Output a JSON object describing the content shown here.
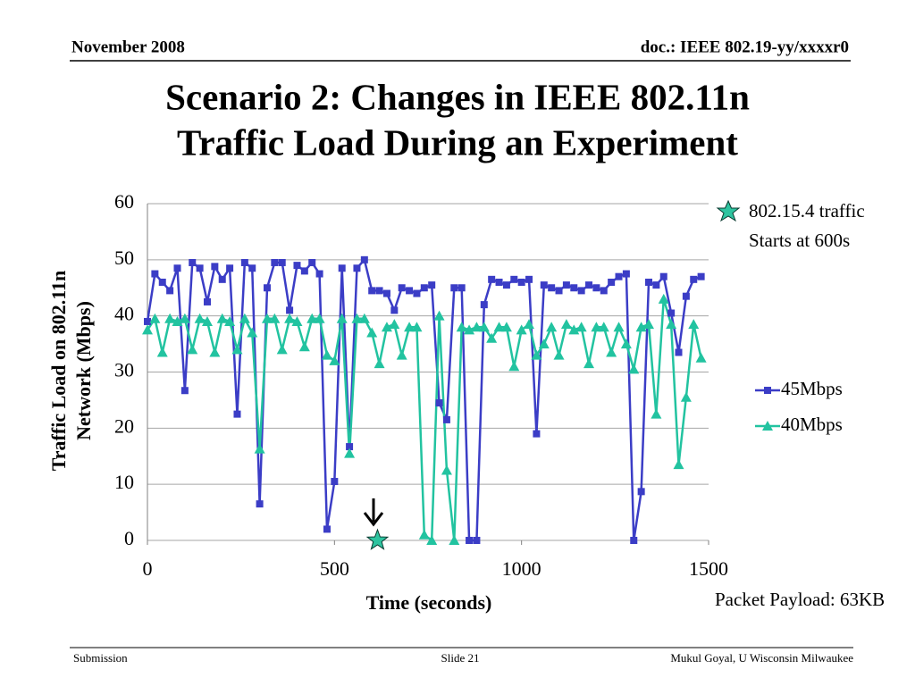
{
  "header": {
    "date": "November 2008",
    "doc": "doc.: IEEE 802.19-yy/xxxxr0"
  },
  "slide_title": [
    "Scenario 2: Changes in IEEE 802.11n",
    "Traffic Load During an Experiment"
  ],
  "footer": {
    "left": "Submission",
    "center": "Slide 21",
    "right": "Mukul Goyal, U Wisconsin Milwaukee"
  },
  "chart_data": {
    "type": "line",
    "ylabel": [
      "Traffic Load on 802.11n",
      "Network (Mbps)"
    ],
    "xlabel": "Time (seconds)",
    "annotations": [
      "802.15.4 traffic",
      "Starts at 600s"
    ],
    "note": "Packet  Payload: 63KB",
    "event_marker": {
      "x": 615,
      "y": 0,
      "color": "#2ec4a0"
    },
    "x": [
      0,
      20,
      40,
      60,
      80,
      100,
      120,
      140,
      160,
      180,
      200,
      220,
      240,
      260,
      280,
      300,
      320,
      340,
      360,
      380,
      400,
      420,
      440,
      460,
      480,
      500,
      520,
      540,
      560,
      580,
      600,
      620,
      640,
      660,
      680,
      700,
      720,
      740,
      760,
      780,
      800,
      820,
      840,
      860,
      880,
      900,
      920,
      940,
      960,
      980,
      1000,
      1020,
      1040,
      1060,
      1080,
      1100,
      1120,
      1140,
      1160,
      1180,
      1200,
      1220,
      1240,
      1260,
      1280,
      1300,
      1320,
      1340,
      1360,
      1380,
      1400,
      1420,
      1440,
      1460,
      1480
    ],
    "series": [
      {
        "name": "45Mbps",
        "color": "#3b3dc6",
        "marker": "square",
        "values": [
          39,
          47.5,
          46,
          44.5,
          48.5,
          26.7,
          49.5,
          48.5,
          42.5,
          48.8,
          46.5,
          48.5,
          22.5,
          49.5,
          48.5,
          6.5,
          45,
          49.5,
          49.5,
          41,
          49,
          48,
          49.5,
          47.5,
          2,
          10.5,
          48.5,
          16.7,
          48.5,
          50,
          44.5,
          44.5,
          44,
          41,
          45,
          44.5,
          44,
          45,
          45.5,
          24.5,
          21.5,
          45,
          45,
          0,
          0,
          42,
          46.5,
          46,
          45.5,
          46.5,
          46,
          46.5,
          19,
          45.5,
          45,
          44.5,
          45.5,
          45,
          44.5,
          45.5,
          45,
          44.5,
          46,
          47,
          47.5,
          0,
          8.7,
          46,
          45.5,
          47,
          40.5,
          33.5,
          43.5,
          46.5,
          47
        ]
      },
      {
        "name": "40Mbps",
        "color": "#22c3a0",
        "marker": "triangle",
        "values": [
          37.5,
          39.5,
          33.5,
          39.5,
          39,
          39.5,
          34,
          39.5,
          39,
          33.5,
          39.5,
          39,
          34,
          39.5,
          37,
          16.3,
          39.5,
          39.5,
          34,
          39.5,
          39,
          34.5,
          39.5,
          39.5,
          33,
          32,
          39.5,
          15.5,
          39.5,
          39.5,
          37,
          31.5,
          38,
          38.5,
          33,
          38,
          38,
          1,
          0,
          40,
          12.5,
          0,
          38,
          37.5,
          38,
          38,
          36,
          38,
          38,
          31,
          37.5,
          38.5,
          33,
          35,
          38,
          33,
          38.5,
          37.5,
          38,
          31.5,
          38,
          38,
          33.5,
          38,
          35,
          30.5,
          38,
          38.5,
          22.5,
          43,
          38.5,
          13.5,
          25.5,
          38.5,
          32.5
        ]
      }
    ],
    "xlim": [
      0,
      1500
    ],
    "xticks": [
      0,
      500,
      1000,
      1500
    ],
    "ylim": [
      0,
      60
    ],
    "yticks": [
      0,
      10,
      20,
      30,
      40,
      50,
      60
    ],
    "grid": true,
    "legend": "right"
  }
}
